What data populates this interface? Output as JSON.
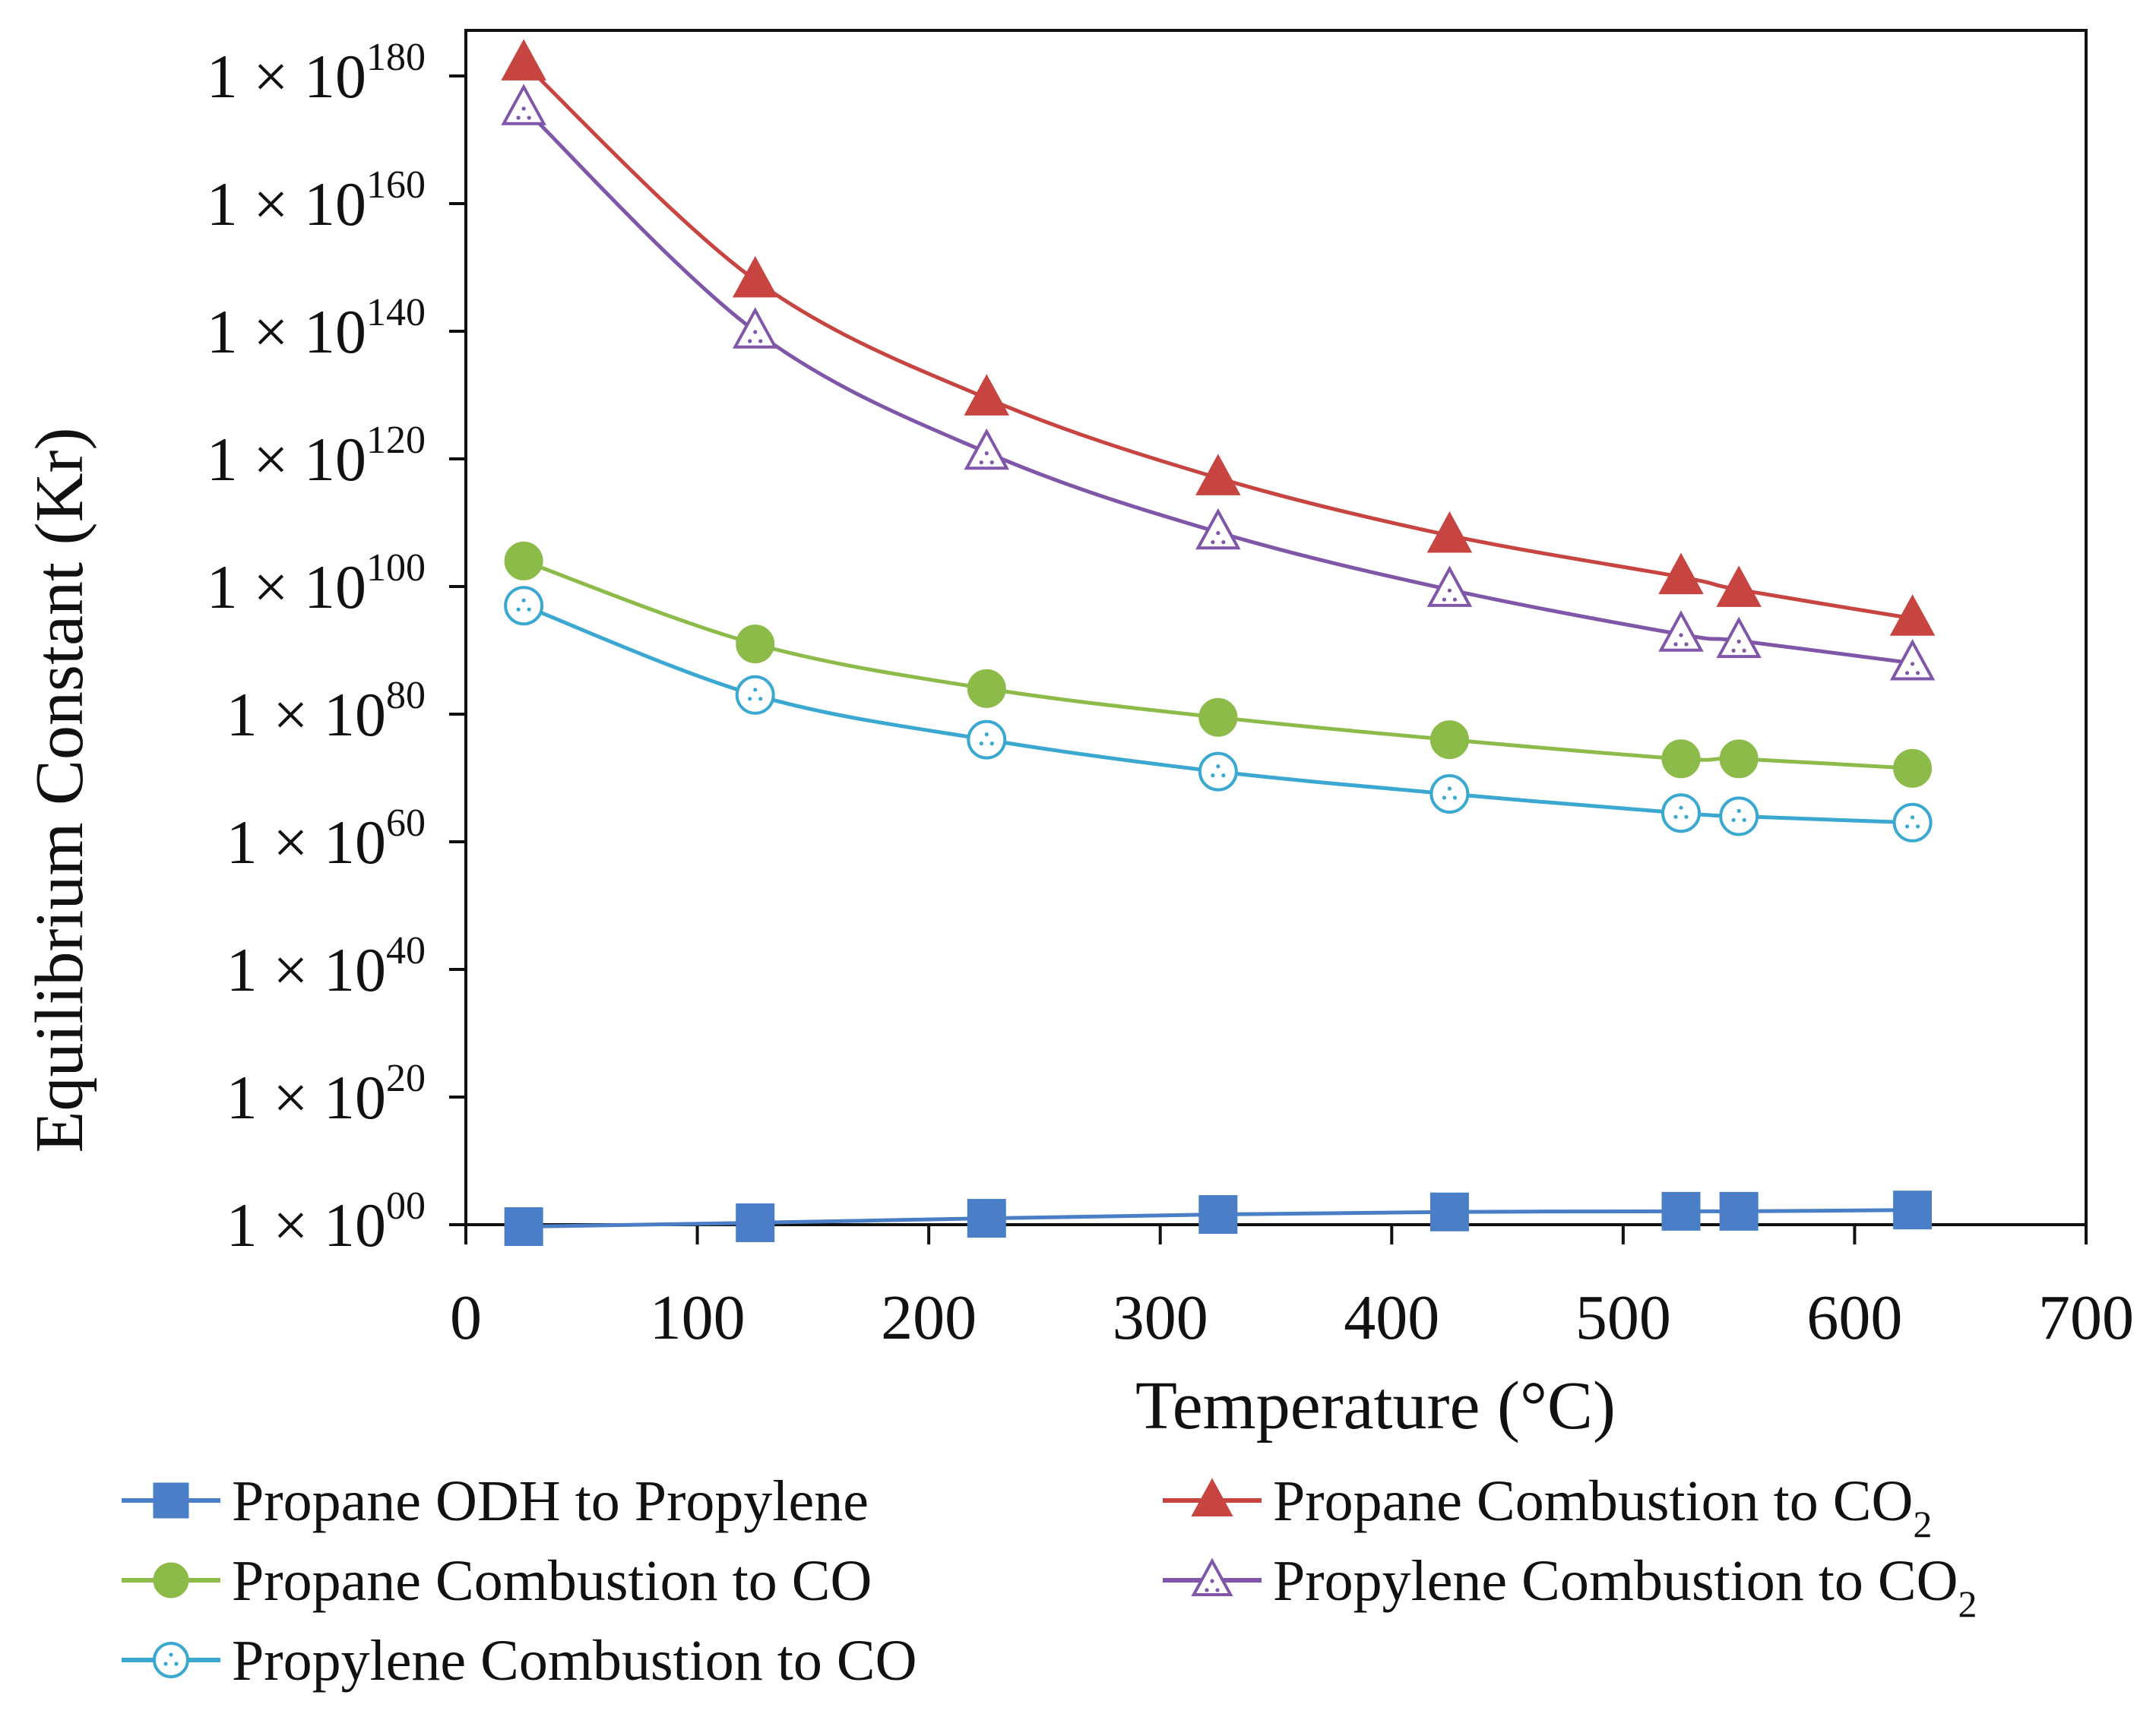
{
  "chart_data": {
    "type": "line",
    "title": "",
    "xlabel": "Temperature (°C)",
    "ylabel": "Equilibrium Constant (Kr)",
    "yscale": "log10",
    "xlim": [
      0,
      700
    ],
    "ylim_exponent": [
      0,
      180
    ],
    "x_ticks": [
      "0",
      "100",
      "200",
      "300",
      "400",
      "500",
      "600",
      "700"
    ],
    "y_ticks": [
      {
        "mantissa": "1 × 10",
        "exp": "00"
      },
      {
        "mantissa": "1 × 10",
        "exp": "20"
      },
      {
        "mantissa": "1 × 10",
        "exp": "40"
      },
      {
        "mantissa": "1 × 10",
        "exp": "60"
      },
      {
        "mantissa": "1 × 10",
        "exp": "80"
      },
      {
        "mantissa": "1 × 10",
        "exp": "100"
      },
      {
        "mantissa": "1 × 10",
        "exp": "120"
      },
      {
        "mantissa": "1 × 10",
        "exp": "140"
      },
      {
        "mantissa": "1 × 10",
        "exp": "160"
      },
      {
        "mantissa": "1 × 10",
        "exp": "180"
      }
    ],
    "x": [
      25,
      125,
      225,
      325,
      425,
      525,
      550,
      625
    ],
    "series": [
      {
        "name": "Propane ODH to Propylene",
        "sub": "",
        "color": "#4a7fc8",
        "marker": "square",
        "log10_values": [
          -0.3,
          0.3,
          1.0,
          1.6,
          2.0,
          2.1,
          2.1,
          2.3
        ]
      },
      {
        "name": "Propane Combustion to CO",
        "sub": "2",
        "color": "#c84440",
        "marker": "triangle-filled",
        "log10_values": [
          182,
          148,
          129.5,
          117,
          108,
          101.5,
          99.5,
          95
        ]
      },
      {
        "name": "Propane Combustion to CO",
        "sub": "",
        "color": "#8dbb4a",
        "marker": "circle-filled",
        "log10_values": [
          104,
          91,
          84,
          79.5,
          76,
          73,
          73,
          71.5
        ]
      },
      {
        "name": "Propylene Combustion to CO",
        "sub": "2",
        "color": "#8057a8",
        "marker": "triangle-open",
        "log10_values": [
          175,
          140,
          121,
          108.5,
          99.5,
          92.5,
          91.5,
          88
        ]
      },
      {
        "name": "Propylene Combustion to CO",
        "sub": "",
        "color": "#3aa8d0",
        "marker": "circle-open",
        "log10_values": [
          97,
          83,
          76,
          71,
          67.5,
          64.5,
          64,
          63
        ]
      }
    ],
    "legend_position": "bottom"
  }
}
